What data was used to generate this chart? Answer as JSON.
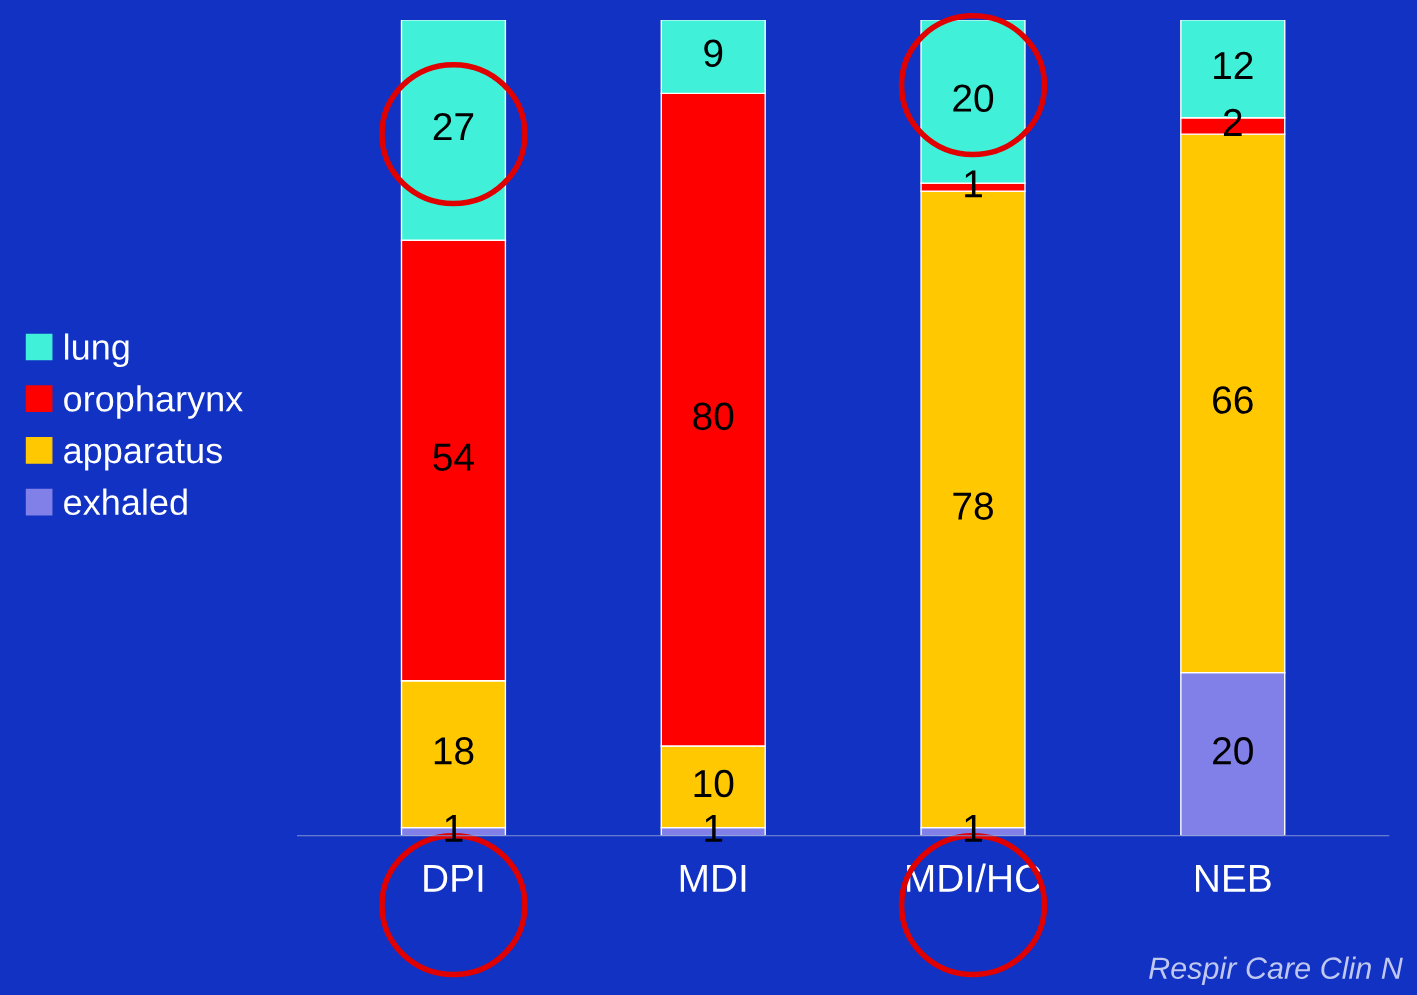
{
  "chart_data": {
    "type": "bar",
    "stacked": true,
    "data_labels": true,
    "legend": "left",
    "categories": [
      "DPI",
      "MDI",
      "MDI/HC",
      "NEB"
    ],
    "series": [
      {
        "name": "exhaled",
        "color": "#8080e8",
        "values": [
          1,
          1,
          1,
          20
        ]
      },
      {
        "name": "apparatus",
        "color": "#ffc800",
        "values": [
          18,
          10,
          78,
          66
        ]
      },
      {
        "name": "oropharynx",
        "color": "#ff0000",
        "values": [
          54,
          80,
          1,
          2
        ]
      },
      {
        "name": "lung",
        "color": "#40f0d8",
        "values": [
          27,
          9,
          20,
          12
        ]
      }
    ],
    "annotations": [
      "Respir Care Clin N"
    ]
  }
}
